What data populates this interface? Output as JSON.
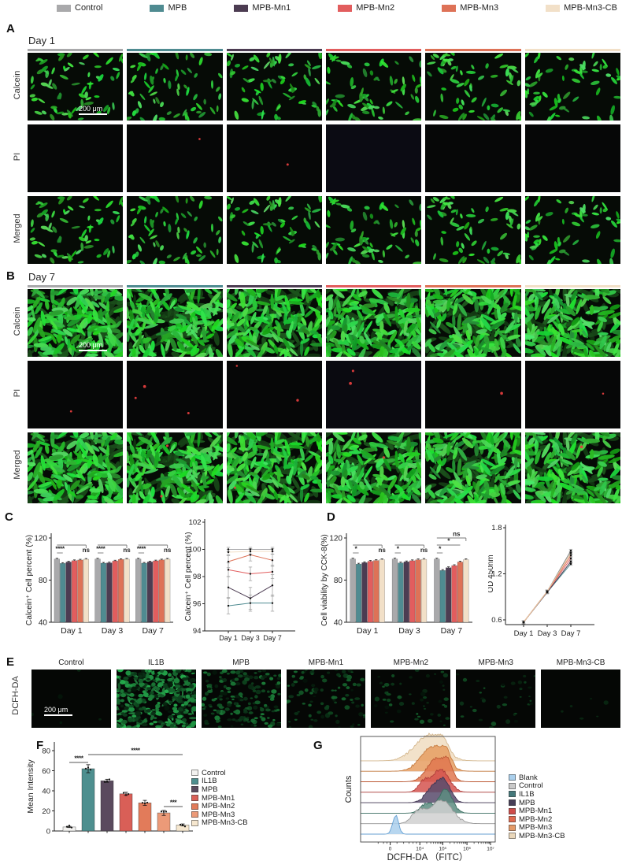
{
  "top_legend": [
    {
      "label": "Control",
      "color": "#a9a9ab"
    },
    {
      "label": "MPB",
      "color": "#4f8b91"
    },
    {
      "label": "MPB-Mn1",
      "color": "#4c3c52"
    },
    {
      "label": "MPB-Mn2",
      "color": "#e25d5e"
    },
    {
      "label": "MPB-Mn3",
      "color": "#de7257"
    },
    {
      "label": "MPB-Mn3-CB",
      "color": "#f2e0c8"
    }
  ],
  "group_colors": [
    "#a9a9ab",
    "#4f8b91",
    "#4c3c52",
    "#e25d5e",
    "#de7257",
    "#f2e0c8"
  ],
  "panels": {
    "A": {
      "label": "A",
      "title": "Day 1",
      "row_labels": [
        "Calcein",
        "PI",
        "Merged"
      ],
      "scale_bar": "200 μm",
      "cell_count": 65,
      "cell_scale": 1.0,
      "pi_dots": [
        0,
        1,
        1,
        0,
        0,
        0
      ],
      "merged_dots": [
        0,
        0,
        0,
        0,
        0,
        0
      ],
      "pi_bg": [
        "#060707",
        "#060707",
        "#060707",
        "#0b0b13",
        "#060707",
        "#060707"
      ]
    },
    "B": {
      "label": "B",
      "title": "Day 7",
      "row_labels": [
        "Calcein",
        "PI",
        "Merged"
      ],
      "scale_bar": "200 μm",
      "cell_count": 170,
      "cell_scale": 1.7,
      "pi_dots": [
        1,
        3,
        2,
        2,
        1,
        1
      ],
      "merged_dots": [
        0,
        2,
        1,
        1,
        0,
        1
      ],
      "pi_bg": [
        "#060707",
        "#060707",
        "#060707",
        "#0a0a10",
        "#060707",
        "#060707"
      ]
    },
    "C": {
      "label": "C"
    },
    "D": {
      "label": "D"
    },
    "E": {
      "label": "E",
      "row_label": "DCFH-DA",
      "scale_bar": "200 μm",
      "columns": [
        {
          "label": "Control",
          "count": 5,
          "bright": 0.3
        },
        {
          "label": "IL1B",
          "count": 300,
          "bright": 1.0
        },
        {
          "label": "MPB",
          "count": 170,
          "bright": 0.7
        },
        {
          "label": "MPB-Mn1",
          "count": 90,
          "bright": 0.55
        },
        {
          "label": "MPB-Mn2",
          "count": 55,
          "bright": 0.45
        },
        {
          "label": "MPB-Mn3",
          "count": 35,
          "bright": 0.4
        },
        {
          "label": "MPB-Mn3-CB",
          "count": 6,
          "bright": 0.28
        }
      ]
    },
    "F": {
      "label": "F"
    },
    "G": {
      "label": "G"
    }
  },
  "chart_data": [
    {
      "id": "c_bar",
      "type": "bar",
      "ylabel": "Calcein⁺ Cell percent (%)",
      "categories": [
        "Day 1",
        "Day 3",
        "Day 7"
      ],
      "ylim": [
        40,
        120
      ],
      "yticks": [
        40,
        80,
        120
      ],
      "error": 0.7,
      "series": [
        {
          "name": "Control",
          "color": "#a9a9ab",
          "values": [
            100,
            100,
            100
          ]
        },
        {
          "name": "MPB",
          "color": "#4f8b91",
          "values": [
            95.9,
            96.1,
            96.1
          ]
        },
        {
          "name": "MPB-Mn1",
          "color": "#4c3c52",
          "values": [
            97.2,
            96.4,
            97.3
          ]
        },
        {
          "name": "MPB-Mn2",
          "color": "#e25d5e",
          "values": [
            98.5,
            98.2,
            98.3
          ]
        },
        {
          "name": "MPB-Mn3",
          "color": "#de7257",
          "values": [
            99.1,
            99.6,
            99.2
          ]
        },
        {
          "name": "MPB-Mn3-CB",
          "color": "#f2e0c8",
          "values": [
            99.8,
            99.9,
            99.9
          ]
        }
      ],
      "annotations": [
        [
          {
            "from": 0,
            "to": 1,
            "label": "****",
            "level": 0
          },
          {
            "from": 0,
            "to": 5,
            "label": "ns",
            "level": 1
          }
        ],
        [
          {
            "from": 0,
            "to": 1,
            "label": "****",
            "level": 0
          },
          {
            "from": 0,
            "to": 5,
            "label": "ns",
            "level": 1
          }
        ],
        [
          {
            "from": 0,
            "to": 1,
            "label": "****",
            "level": 0
          },
          {
            "from": 0,
            "to": 5,
            "label": "ns",
            "level": 1
          }
        ]
      ]
    },
    {
      "id": "c_line",
      "type": "line",
      "ylabel": "Calcein⁺ Cell percent (%)",
      "x": [
        "Day 1",
        "Day 3",
        "Day 7"
      ],
      "ylim": [
        94,
        102
      ],
      "yticks": [
        94,
        96,
        98,
        100,
        102
      ],
      "series": [
        {
          "name": "Control",
          "color": "#a9a9ab",
          "values": [
            100,
            100,
            100
          ],
          "err": 0.15
        },
        {
          "name": "MPB",
          "color": "#4f8b91",
          "values": [
            95.85,
            96.05,
            96.05
          ],
          "err": 0.6
        },
        {
          "name": "MPB-Mn1",
          "color": "#4c3c52",
          "values": [
            97.2,
            96.4,
            97.35
          ],
          "err": 0.8
        },
        {
          "name": "MPB-Mn2",
          "color": "#e25d5e",
          "values": [
            98.5,
            98.2,
            98.35
          ],
          "err": 0.5
        },
        {
          "name": "MPB-Mn3",
          "color": "#de7257",
          "values": [
            99.1,
            99.6,
            99.2
          ],
          "err": 0.45
        },
        {
          "name": "MPB-Mn3-CB",
          "color": "#f2e0c8",
          "values": [
            99.8,
            99.85,
            99.85
          ],
          "err": 0.2
        }
      ]
    },
    {
      "id": "d_bar",
      "type": "bar",
      "ylabel": "Cell viability by CCK-8(%)",
      "categories": [
        "Day 1",
        "Day 3",
        "Day 7"
      ],
      "ylim": [
        40,
        120
      ],
      "yticks": [
        40,
        80,
        120
      ],
      "error": 0.8,
      "series": [
        {
          "name": "Control",
          "color": "#a9a9ab",
          "values": [
            100,
            100,
            100
          ]
        },
        {
          "name": "MPB",
          "color": "#4f8b91",
          "values": [
            95.2,
            96.3,
            89.2
          ]
        },
        {
          "name": "MPB-Mn1",
          "color": "#4c3c52",
          "values": [
            96.6,
            97.4,
            91.8
          ]
        },
        {
          "name": "MPB-Mn2",
          "color": "#e25d5e",
          "values": [
            97.9,
            98.4,
            93.8
          ]
        },
        {
          "name": "MPB-Mn3",
          "color": "#de7257",
          "values": [
            98.6,
            99.3,
            97.2
          ]
        },
        {
          "name": "MPB-Mn3-CB",
          "color": "#f2e0c8",
          "values": [
            99.4,
            99.7,
            99.4
          ]
        }
      ],
      "annotations": [
        [
          {
            "from": 0,
            "to": 1,
            "label": "*",
            "level": 0
          },
          {
            "from": 0,
            "to": 5,
            "label": "ns",
            "level": 1
          }
        ],
        [
          {
            "from": 0,
            "to": 1,
            "label": "*",
            "level": 0
          },
          {
            "from": 0,
            "to": 5,
            "label": "ns",
            "level": 1
          }
        ],
        [
          {
            "from": 0,
            "to": 1,
            "label": "*",
            "level": 0
          },
          {
            "from": 0,
            "to": 4,
            "label": "*",
            "level": 1
          },
          {
            "from": 0,
            "to": 5,
            "label": "ns",
            "level": 2
          }
        ]
      ]
    },
    {
      "id": "d_line",
      "type": "line",
      "ylabel": "OD 450nm",
      "x": [
        "Day 1",
        "Day 3",
        "Day 7"
      ],
      "ylim": [
        0.6,
        1.8
      ],
      "yticks": [
        0.6,
        1.2,
        1.8
      ],
      "series": [
        {
          "name": "Control",
          "color": "#8a8a8c",
          "values": [
            0.57,
            0.97,
            1.5
          ],
          "err": 0.02
        },
        {
          "name": "MPB",
          "color": "#4f8b91",
          "values": [
            0.57,
            0.96,
            1.33
          ],
          "err": 0.02
        },
        {
          "name": "MPB-Mn1",
          "color": "#4c3c52",
          "values": [
            0.57,
            0.96,
            1.36
          ],
          "err": 0.02
        },
        {
          "name": "MPB-Mn2",
          "color": "#e25d5e",
          "values": [
            0.57,
            0.97,
            1.4
          ],
          "err": 0.02
        },
        {
          "name": "MPB-Mn3",
          "color": "#de7257",
          "values": [
            0.57,
            0.97,
            1.44
          ],
          "err": 0.02
        },
        {
          "name": "MPB-Mn3-CB",
          "color": "#e8cba3",
          "values": [
            0.57,
            0.97,
            1.47
          ],
          "err": 0.02
        }
      ]
    },
    {
      "id": "f_bar",
      "type": "bar",
      "ylabel": "Mean Intensity",
      "ylim": [
        0,
        80
      ],
      "yticks": [
        0,
        20,
        40,
        60,
        80
      ],
      "categories": [
        "Control",
        "IL1B",
        "MPB",
        "MPB-Mn1",
        "MPB-Mn2",
        "MPB-Mn3",
        "MPB-Mn3-CB"
      ],
      "values": [
        4,
        62,
        50,
        37,
        28,
        18,
        6
      ],
      "errors": [
        0.6,
        4,
        1.5,
        1.5,
        2.5,
        2.5,
        1
      ],
      "colors": [
        "#f3f2f0",
        "#4e8f8f",
        "#5a4a5e",
        "#d95f57",
        "#e27b5a",
        "#ec9a78",
        "#f6e7cf"
      ],
      "legend": [
        "Control",
        "IL1B",
        "MPB",
        "MPB-Mn1",
        "MPB-Mn2",
        "MPB-Mn3",
        "MPB-Mn3-CB"
      ],
      "annotations": [
        {
          "from": 0,
          "to": 1,
          "label": "****",
          "level": 0
        },
        {
          "from": 1,
          "to": 6,
          "label": "****",
          "level": 1
        },
        {
          "from": 5,
          "to": 6,
          "label": "***",
          "level": -1
        }
      ]
    },
    {
      "id": "g_ridge",
      "type": "ridgeline",
      "xlabel": "DCFH-DA （FITC）",
      "ylabel": "Counts",
      "xticks": [
        "0",
        "10⁴",
        "10⁵",
        "10⁶",
        "10⁷"
      ],
      "legend": [
        "Blank",
        "Control",
        "IL1B",
        "MPB",
        "MPB-Mn1",
        "MPB-Mn2",
        "MPB-Mn3",
        "MPB-Mn3-CB"
      ],
      "legend_colors": [
        "#aacfec",
        "#c9c9c9",
        "#44787a",
        "#463e57",
        "#cf4b49",
        "#e0694e",
        "#e49a68",
        "#ead7ba"
      ],
      "series": [
        {
          "name": "Blank",
          "color": "#aacfec",
          "stroke": "#649fd2",
          "amp": 24,
          "peaks": [
            {
              "mu": 0.26,
              "s": 0.022,
              "a": 1
            }
          ]
        },
        {
          "name": "Control",
          "color": "#d0d0d0",
          "stroke": "#9c9c9c",
          "amp": 30,
          "peaks": [
            {
              "mu": 0.43,
              "s": 0.05,
              "a": 0.5
            },
            {
              "mu": 0.6,
              "s": 0.08,
              "a": 1
            }
          ]
        },
        {
          "name": "IL1B",
          "color": "#5c8c80",
          "stroke": "#3c6f62",
          "amp": 30,
          "peaks": [
            {
              "mu": 0.49,
              "s": 0.045,
              "a": 0.4
            },
            {
              "mu": 0.63,
              "s": 0.05,
              "a": 1
            }
          ]
        },
        {
          "name": "MPB",
          "color": "#584a6b",
          "stroke": "#403552",
          "amp": 29,
          "peaks": [
            {
              "mu": 0.52,
              "s": 0.05,
              "a": 0.5
            },
            {
              "mu": 0.615,
              "s": 0.05,
              "a": 1
            }
          ]
        },
        {
          "name": "MPB-Mn1",
          "color": "#d5534f",
          "stroke": "#ae3c39",
          "amp": 29,
          "peaks": [
            {
              "mu": 0.47,
              "s": 0.04,
              "a": 0.45
            },
            {
              "mu": 0.595,
              "s": 0.06,
              "a": 1
            }
          ]
        },
        {
          "name": "MPB-Mn2",
          "color": "#e0774f",
          "stroke": "#bd5a36",
          "amp": 30,
          "peaks": [
            {
              "mu": 0.565,
              "s": 0.07,
              "a": 1
            },
            {
              "mu": 0.65,
              "s": 0.03,
              "a": 0.5
            }
          ]
        },
        {
          "name": "MPB-Mn3",
          "color": "#e69d62",
          "stroke": "#c77e43",
          "amp": 30,
          "peaks": [
            {
              "mu": 0.53,
              "s": 0.085,
              "a": 1
            },
            {
              "mu": 0.63,
              "s": 0.04,
              "a": 0.6
            }
          ]
        },
        {
          "name": "MPB-Mn3-CB",
          "color": "#f0ddc1",
          "stroke": "#d4b88f",
          "amp": 31,
          "peaks": [
            {
              "mu": 0.5,
              "s": 0.1,
              "a": 1
            },
            {
              "mu": 0.6,
              "s": 0.05,
              "a": 0.5
            }
          ]
        }
      ]
    }
  ]
}
